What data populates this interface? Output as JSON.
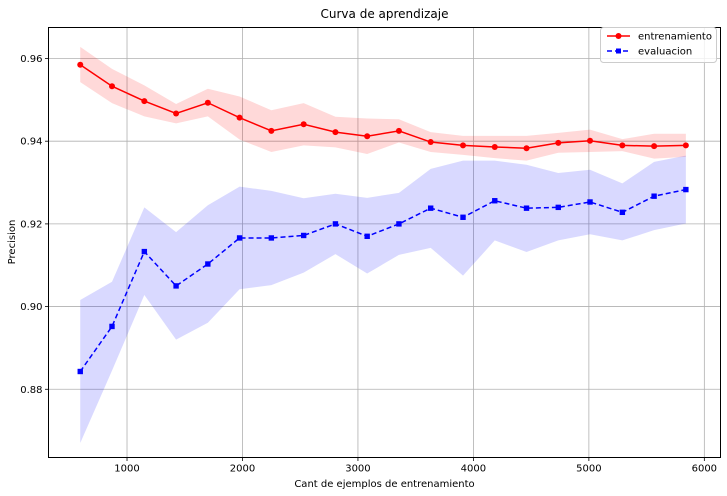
{
  "chart_data": {
    "type": "line",
    "title": "Curva de aprendizaje",
    "xlabel": "Cant de ejemplos de entrenamiento",
    "ylabel": "Precision",
    "xlim": [
      320,
      6140
    ],
    "ylim": [
      0.8635,
      0.9675
    ],
    "x_ticks": [
      1000,
      2000,
      3000,
      4000,
      5000,
      6000
    ],
    "y_ticks": [
      0.88,
      0.9,
      0.92,
      0.94,
      0.96
    ],
    "x_tick_labels": [
      "1000",
      "2000",
      "3000",
      "4000",
      "5000",
      "6000"
    ],
    "y_tick_labels": [
      "0.88",
      "0.90",
      "0.92",
      "0.94",
      "0.96"
    ],
    "grid": true,
    "legend_position": "upper-right",
    "x": [
      595,
      870,
      1150,
      1425,
      1700,
      1975,
      2250,
      2530,
      2805,
      3080,
      3355,
      3630,
      3910,
      4185,
      4460,
      4735,
      5010,
      5290,
      5565,
      5840
    ],
    "series": [
      {
        "name": "entrenamiento",
        "color": "#ff0000",
        "band_color": "#ff0000",
        "marker": "circle",
        "linestyle": "solid",
        "values": [
          0.9585,
          0.9533,
          0.9497,
          0.9467,
          0.9493,
          0.9457,
          0.9425,
          0.9441,
          0.9422,
          0.9412,
          0.9425,
          0.9398,
          0.939,
          0.9386,
          0.9383,
          0.9396,
          0.9401,
          0.939,
          0.9388,
          0.939
        ],
        "upper": [
          0.9628,
          0.9575,
          0.9535,
          0.949,
          0.9527,
          0.9508,
          0.9475,
          0.9492,
          0.9459,
          0.9455,
          0.9453,
          0.9422,
          0.9413,
          0.9413,
          0.9413,
          0.942,
          0.9428,
          0.9405,
          0.9418,
          0.9418
        ],
        "lower": [
          0.9543,
          0.9492,
          0.946,
          0.9443,
          0.946,
          0.9404,
          0.9374,
          0.939,
          0.9385,
          0.9369,
          0.9397,
          0.9374,
          0.9367,
          0.9359,
          0.9353,
          0.9372,
          0.9374,
          0.9376,
          0.9358,
          0.9362
        ]
      },
      {
        "name": "evaluacion",
        "color": "#0000ff",
        "band_color": "#0000ff",
        "marker": "square",
        "linestyle": "dashed",
        "values": [
          0.8843,
          0.8952,
          0.9133,
          0.905,
          0.9103,
          0.9166,
          0.9166,
          0.9172,
          0.92,
          0.917,
          0.92,
          0.9238,
          0.9216,
          0.9256,
          0.9238,
          0.924,
          0.9253,
          0.9228,
          0.9267,
          0.9283
        ],
        "upper": [
          0.9016,
          0.906,
          0.924,
          0.918,
          0.9245,
          0.929,
          0.928,
          0.9262,
          0.9273,
          0.9263,
          0.9275,
          0.9333,
          0.9353,
          0.9353,
          0.9343,
          0.9323,
          0.9331,
          0.9298,
          0.935,
          0.9365
        ],
        "lower": [
          0.867,
          0.8845,
          0.9028,
          0.892,
          0.8961,
          0.9042,
          0.9052,
          0.9082,
          0.9127,
          0.908,
          0.9125,
          0.9142,
          0.9075,
          0.916,
          0.9132,
          0.916,
          0.9175,
          0.916,
          0.9185,
          0.9201
        ]
      }
    ]
  }
}
